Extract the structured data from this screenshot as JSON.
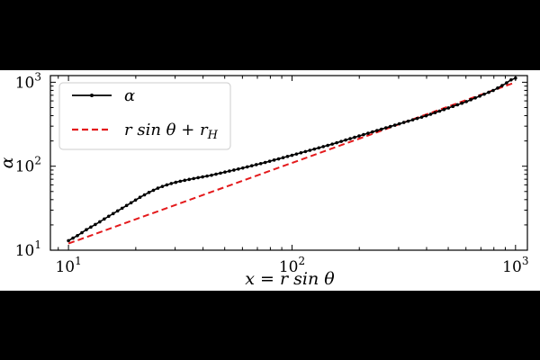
{
  "chart_data": {
    "type": "line",
    "xscale": "log",
    "yscale": "log",
    "xlim": [
      8.3,
      1130
    ],
    "ylim": [
      10,
      1200
    ],
    "xlabel": "x = r sin θ",
    "ylabel": "α",
    "xticks": [
      10,
      100,
      1000
    ],
    "yticks": [
      10,
      100,
      1000
    ],
    "xtick_labels": [
      {
        "base": "10",
        "exp": "1"
      },
      {
        "base": "10",
        "exp": "2"
      },
      {
        "base": "10",
        "exp": "3"
      }
    ],
    "ytick_labels": [
      {
        "base": "10",
        "exp": "1"
      },
      {
        "base": "10",
        "exp": "2"
      },
      {
        "base": "10",
        "exp": "3"
      }
    ],
    "legend_position": "top-left",
    "series": [
      {
        "name": "α",
        "color": "#000000",
        "style": "solid-with-markers",
        "x": [
          10,
          11,
          12,
          13.5,
          15,
          17,
          19,
          21,
          23,
          25,
          27,
          29,
          31,
          34,
          38,
          43,
          50,
          60,
          75,
          100,
          150,
          250,
          400,
          600,
          800,
          900,
          950,
          1000
        ],
        "y": [
          13,
          15,
          17.5,
          21,
          25,
          30.5,
          36.5,
          43,
          49,
          54.5,
          59,
          62.5,
          65.5,
          69,
          73,
          77.5,
          85,
          95,
          110,
          135,
          182,
          275,
          400,
          585,
          805,
          960,
          1060,
          1120
        ]
      },
      {
        "name": "r sin θ + r_H",
        "color": "#e41a1c",
        "style": "dashed",
        "x": [
          10,
          1000
        ],
        "y": [
          12,
          1000
        ]
      }
    ]
  },
  "legend": {
    "entries": [
      {
        "text": "α",
        "color": "#000000"
      },
      {
        "text": "r sin θ + r",
        "sub": "H",
        "color": "#e41a1c"
      }
    ]
  }
}
